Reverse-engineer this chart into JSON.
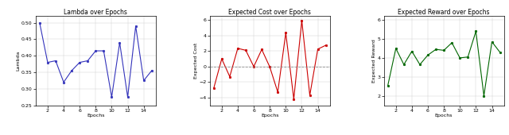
{
  "subplot1": {
    "title": "Lambda over Epochs",
    "xlabel": "Epochs",
    "ylabel": "Lambda",
    "color": "#3333bb",
    "x": [
      1,
      2,
      3,
      4,
      5,
      6,
      7,
      8,
      9,
      10,
      11,
      12,
      13,
      14,
      15
    ],
    "y": [
      0.5,
      0.38,
      0.385,
      0.32,
      0.355,
      0.38,
      0.385,
      0.415,
      0.415,
      0.275,
      0.44,
      0.275,
      0.49,
      0.325,
      0.355
    ],
    "ylim": [
      0.25,
      0.52
    ],
    "yticks": [
      0.25,
      0.3,
      0.35,
      0.4,
      0.45,
      0.5
    ],
    "xticks": [
      2,
      4,
      6,
      8,
      10,
      12,
      14
    ]
  },
  "subplot2": {
    "title": "Expected Cost over Epochs",
    "xlabel": "Epochs",
    "ylabel": "Expected Cost",
    "color": "#cc0000",
    "x": [
      1,
      2,
      3,
      4,
      5,
      6,
      7,
      8,
      9,
      10,
      11,
      12,
      13,
      14,
      15
    ],
    "y": [
      -2.8,
      1.0,
      -1.3,
      2.35,
      2.1,
      0.0,
      2.2,
      -0.05,
      -3.3,
      4.35,
      -4.2,
      5.95,
      -3.7,
      2.25,
      2.75
    ],
    "hline": 0.0,
    "ylim": [
      -5,
      6.5
    ],
    "yticks": [
      -4,
      -2,
      0,
      2,
      4,
      6
    ],
    "xticks": [
      2,
      4,
      6,
      8,
      10,
      12,
      14
    ]
  },
  "subplot3": {
    "title": "Expected Reward over Epochs",
    "xlabel": "Epochs",
    "ylabel": "Expected Reward",
    "color": "#006600",
    "x": [
      1,
      2,
      3,
      4,
      5,
      6,
      7,
      8,
      9,
      10,
      11,
      12,
      13,
      14,
      15
    ],
    "y": [
      2.55,
      4.5,
      3.65,
      4.35,
      3.65,
      4.15,
      4.45,
      4.4,
      4.8,
      4.0,
      4.05,
      5.4,
      2.0,
      4.85,
      4.3
    ],
    "ylim": [
      1.5,
      6.2
    ],
    "yticks": [
      2,
      3,
      4,
      5,
      6
    ],
    "xticks": [
      2,
      4,
      6,
      8,
      10,
      12,
      14
    ]
  },
  "figsize": [
    6.4,
    1.7
  ],
  "dpi": 100,
  "title_fontsize": 5.5,
  "label_fontsize": 4.5,
  "tick_fontsize": 4.5,
  "marker": "o",
  "markersize": 1.8,
  "linewidth": 0.8
}
